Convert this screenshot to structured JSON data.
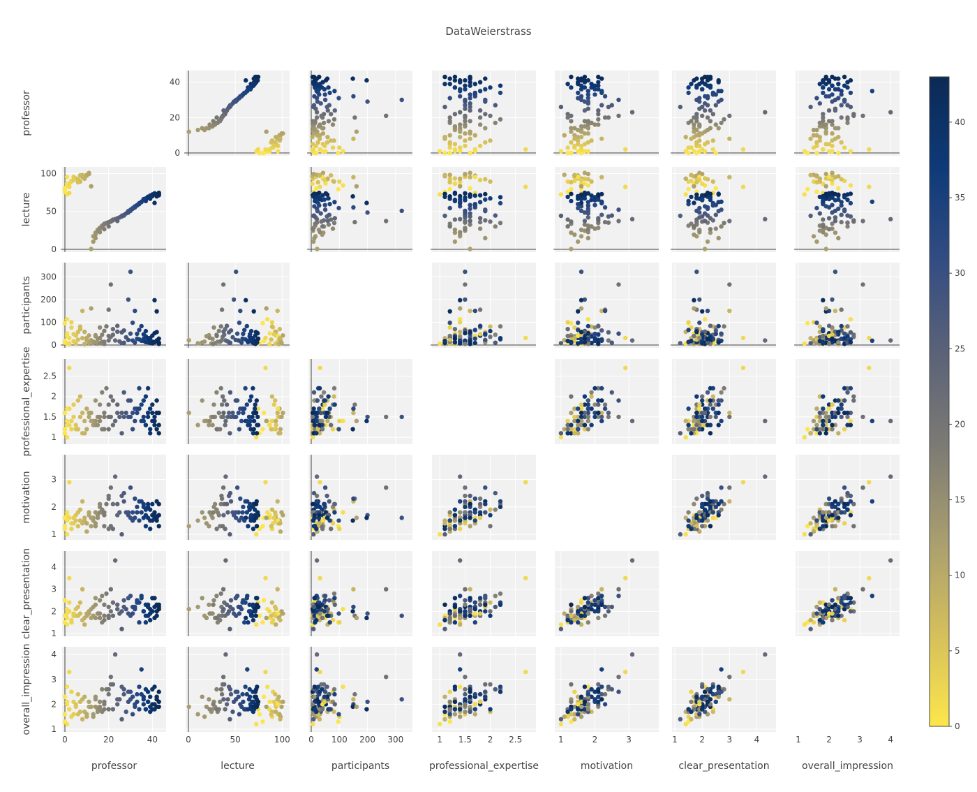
{
  "chart_data": {
    "type": "scatter",
    "subtype": "scatter-matrix",
    "title": "DataWeierstrass",
    "grid": true,
    "diagonal_visible": false,
    "variables": [
      {
        "name": "professor",
        "range": [
          0,
          45
        ],
        "ticks": [
          0,
          20,
          40
        ]
      },
      {
        "name": "lecture",
        "range": [
          0,
          105
        ],
        "ticks": [
          0,
          50,
          100
        ]
      },
      {
        "name": "participants",
        "range": [
          0,
          350
        ],
        "ticks": [
          0,
          100,
          200,
          300
        ]
      },
      {
        "name": "professional_expertise",
        "range": [
          0.9,
          2.85
        ],
        "ticks": [
          1,
          1.5,
          2,
          2.5
        ]
      },
      {
        "name": "motivation",
        "range": [
          0.9,
          3.8
        ],
        "ticks": [
          1,
          2,
          3
        ]
      },
      {
        "name": "clear_presentation",
        "range": [
          1,
          4.6
        ],
        "ticks": [
          1,
          2,
          3,
          4
        ]
      },
      {
        "name": "overall_impression",
        "range": [
          1,
          4.2
        ],
        "ticks": [
          1,
          2,
          3,
          4
        ]
      }
    ],
    "colorbar": {
      "variable": "professor",
      "range": [
        0,
        43
      ],
      "ticks": [
        0,
        5,
        10,
        15,
        20,
        25,
        30,
        35,
        40
      ],
      "colorscale": [
        "#fde64b",
        "#d4bf5c",
        "#a99e6f",
        "#7d7b74",
        "#5c6378",
        "#344d82",
        "#0f3a79",
        "#0b2a55"
      ]
    },
    "records": [
      [
        0,
        79.3,
        96,
        1.2,
        1.3,
        1.5,
        1.3
      ],
      [
        0,
        80.5,
        18,
        1.6,
        1.6,
        2.5,
        2.3
      ],
      [
        0,
        75.9,
        10,
        1.1,
        1.2,
        1.8,
        1.6
      ],
      [
        1,
        72.4,
        6,
        1.0,
        1.0,
        1.4,
        1.2
      ],
      [
        1,
        84.3,
        113,
        1.4,
        1.8,
        2.1,
        2.7
      ],
      [
        1,
        86.9,
        51,
        1.3,
        1.7,
        1.7,
        2.1
      ],
      [
        2,
        74.3,
        8,
        1.7,
        1.6,
        2.4,
        1.8
      ],
      [
        2,
        82.3,
        31,
        2.7,
        2.9,
        3.5,
        3.3
      ],
      [
        2,
        86.5,
        4,
        1.3,
        1.6,
        2.0,
        1.8
      ],
      [
        3,
        89.3,
        100,
        1.4,
        1.2,
        1.5,
        1.5
      ],
      [
        3,
        90.3,
        77,
        1.2,
        1.4,
        1.6,
        2.5
      ],
      [
        4,
        95.6,
        17,
        1.5,
        1.4,
        1.8,
        1.6
      ],
      [
        5,
        93.5,
        42,
        1.3,
        1.5,
        2.1,
        1.9
      ],
      [
        5,
        93.1,
        6,
        1.2,
        1.7,
        1.8,
        2.0
      ],
      [
        6,
        92.5,
        57,
        1.9,
        1.8,
        2.2,
        2.4
      ],
      [
        7,
        89.3,
        81,
        2.0,
        1.9,
        2.4,
        1.7
      ],
      [
        7,
        97.5,
        70,
        1.5,
        1.5,
        1.9,
        2.1
      ],
      [
        8,
        95.1,
        150,
        1.6,
        2.2,
        3.0,
        2.2
      ],
      [
        9,
        96.4,
        4,
        1.1,
        1.5,
        1.7,
        2.3
      ],
      [
        9,
        93.2,
        58,
        1.4,
        1.6,
        1.4,
        1.7
      ],
      [
        10,
        97.2,
        31,
        1.7,
        1.4,
        1.8,
        1.6
      ],
      [
        10,
        98.2,
        21,
        1.2,
        1.1,
        1.9,
        1.5
      ],
      [
        11,
        99.4,
        9,
        1.5,
        1.8,
        2.0,
        1.9
      ],
      [
        11,
        100.8,
        42,
        1.6,
        1.7,
        1.9,
        2.1
      ],
      [
        12,
        0.5,
        21,
        1.6,
        1.3,
        2.1,
        1.9
      ],
      [
        13,
        10.1,
        8,
        1.3,
        1.5,
        2.2,
        1.6
      ],
      [
        13,
        17.2,
        15,
        1.4,
        1.6,
        1.8,
        1.5
      ],
      [
        14,
        19.3,
        39,
        1.4,
        1.4,
        1.7,
        1.9
      ],
      [
        14,
        21.9,
        43,
        1.3,
        1.3,
        2.3,
        2.2
      ],
      [
        15,
        24.5,
        6,
        1.5,
        1.7,
        1.9,
        1.7
      ],
      [
        15,
        25.8,
        27,
        1.3,
        1.6,
        1.9,
        1.8
      ],
      [
        16,
        27.2,
        77,
        1.8,
        2.0,
        2.5,
        2.1
      ],
      [
        16,
        28.4,
        9,
        1.5,
        2.1,
        1.7,
        1.9
      ],
      [
        17,
        30.1,
        45,
        2.1,
        1.9,
        2.7,
        2.6
      ],
      [
        17,
        31.2,
        14,
        1.2,
        1.8,
        1.5,
        1.7
      ],
      [
        18,
        32.6,
        62,
        1.6,
        1.7,
        1.8,
        1.8
      ],
      [
        18,
        33.7,
        14,
        1.2,
        1.3,
        1.6,
        2.1
      ],
      [
        19,
        34.8,
        82,
        2.2,
        2.1,
        2.8,
        2.6
      ],
      [
        20,
        35.3,
        20,
        1.5,
        2.4,
        2.2,
        2.6
      ],
      [
        20,
        35.8,
        155,
        1.8,
        2.3,
        1.8,
        2.4
      ],
      [
        21,
        36.6,
        36,
        2.0,
        1.3,
        2.0,
        2.8
      ],
      [
        21,
        37.3,
        266,
        1.5,
        2.7,
        3.0,
        3.1
      ],
      [
        22,
        38.2,
        45,
        1.9,
        2.1,
        2.4,
        2.8
      ],
      [
        22,
        39.2,
        70,
        1.3,
        1.2,
        1.8,
        1.8
      ],
      [
        23,
        39.8,
        20,
        1.4,
        3.1,
        4.3,
        4.0
      ],
      [
        24,
        41.0,
        84,
        1.8,
        2.1,
        2.3,
        2.0
      ],
      [
        25,
        42.1,
        16,
        1.5,
        1.8,
        1.9,
        2.2
      ],
      [
        26,
        43.3,
        56,
        1.6,
        2.4,
        2.0,
        2.7
      ],
      [
        26,
        44.2,
        8,
        1.1,
        1.0,
        1.2,
        1.4
      ],
      [
        27,
        45.4,
        64,
        1.5,
        2.2,
        2.5,
        2.4
      ],
      [
        28,
        47.3,
        34,
        1.6,
        1.8,
        2.1,
        1.7
      ],
      [
        29,
        48.5,
        200,
        1.5,
        1.7,
        1.9,
        2.1
      ],
      [
        30,
        50.8,
        322,
        1.5,
        1.6,
        1.8,
        2.2
      ],
      [
        30,
        52.2,
        50,
        1.9,
        2.7,
        2.7,
        2.5
      ],
      [
        31,
        53.5,
        20,
        1.6,
        1.8,
        2.2,
        2.3
      ],
      [
        32,
        55.3,
        150,
        1.7,
        2.3,
        2.2,
        2.0
      ],
      [
        32,
        56.7,
        11,
        1.4,
        1.6,
        2.1,
        1.9
      ],
      [
        33,
        58.4,
        49,
        1.6,
        2.0,
        2.5,
        2.1
      ],
      [
        34,
        60.8,
        25,
        2.2,
        2.2,
        2.4,
        2.7
      ],
      [
        35,
        62.4,
        83,
        1.8,
        1.8,
        2.6,
        2.4
      ],
      [
        36,
        64.8,
        18,
        1.5,
        2.0,
        2.0,
        2.2
      ],
      [
        36,
        66.2,
        27,
        1.4,
        1.6,
        2.0,
        2.0
      ],
      [
        37,
        65.3,
        38,
        1.3,
        1.9,
        2.3,
        2.6
      ],
      [
        37,
        67.1,
        61,
        2.0,
        1.7,
        1.8,
        1.8
      ],
      [
        38,
        68.2,
        12,
        1.5,
        1.6,
        1.8,
        2.1
      ],
      [
        38,
        69.4,
        22,
        1.6,
        2.1,
        2.2,
        2.1
      ],
      [
        39,
        66.7,
        31,
        1.2,
        1.5,
        1.9,
        1.9
      ],
      [
        39,
        70.8,
        9,
        1.7,
        1.9,
        2.1,
        2.3
      ],
      [
        40,
        71.3,
        41,
        1.8,
        1.7,
        2.0,
        2.0
      ],
      [
        40,
        72.3,
        15,
        1.6,
        2.1,
        2.6,
        2.6
      ],
      [
        41,
        61.2,
        197,
        1.4,
        1.6,
        1.7,
        1.8
      ],
      [
        41,
        73.9,
        52,
        1.5,
        1.8,
        2.2,
        2.0
      ],
      [
        42,
        72.8,
        20,
        1.9,
        2.2,
        2.3,
        2.2
      ],
      [
        42,
        69.8,
        148,
        1.2,
        1.5,
        2.0,
        1.9
      ],
      [
        43,
        73.0,
        10,
        1.1,
        1.3,
        2.3,
        1.9
      ],
      [
        43,
        71.4,
        5,
        1.6,
        2.1,
        2.1,
        2.5
      ],
      [
        1,
        95.5,
        40,
        1.7,
        1.5,
        1.9,
        2.0
      ],
      [
        4,
        91.4,
        48,
        1.8,
        1.6,
        1.9,
        2.1
      ],
      [
        6,
        88.4,
        24,
        1.2,
        1.3,
        1.8,
        1.6
      ],
      [
        8,
        97.9,
        30,
        1.1,
        1.4,
        1.6,
        1.4
      ],
      [
        12,
        83.2,
        161,
        1.4,
        1.6,
        1.7,
        1.9
      ],
      [
        14,
        14.7,
        11,
        1.9,
        1.8,
        2.6,
        2.3
      ],
      [
        16,
        22.7,
        31,
        1.4,
        1.8,
        1.9,
        1.8
      ],
      [
        18,
        26.5,
        5,
        1.5,
        1.8,
        2.3,
        2.0
      ],
      [
        20,
        30.2,
        40,
        1.2,
        1.2,
        1.7,
        1.8
      ],
      [
        24,
        37.5,
        59,
        1.6,
        1.7,
        2.1,
        2.2
      ],
      [
        27,
        44.6,
        10,
        2.1,
        2.5,
        2.2,
        2.6
      ],
      [
        29,
        50.5,
        22,
        1.9,
        1.8,
        2.6,
        2.5
      ],
      [
        31,
        54.3,
        98,
        1.2,
        1.5,
        1.9,
        1.6
      ],
      [
        33,
        57.8,
        28,
        1.7,
        1.8,
        2.4,
        2.4
      ],
      [
        35,
        62.8,
        19,
        1.4,
        2.2,
        2.7,
        3.4
      ],
      [
        34,
        59.7,
        66,
        1.7,
        1.5,
        1.5,
        1.8
      ],
      [
        38,
        68.8,
        30,
        2.2,
        2.0,
        2.3,
        2.5
      ],
      [
        40,
        70.1,
        7,
        1.4,
        1.5,
        2.0,
        1.8
      ],
      [
        42,
        72.1,
        57,
        1.6,
        1.6,
        1.8,
        2.3
      ],
      [
        43,
        74.5,
        28,
        1.3,
        1.7,
        2.2,
        2.1
      ],
      [
        37,
        63.6,
        13,
        1.3,
        1.3,
        1.5,
        1.8
      ],
      [
        39,
        69.2,
        18,
        1.1,
        1.2,
        1.6,
        1.7
      ],
      [
        36,
        65.7,
        47,
        1.9,
        2.1,
        2.0,
        2.3
      ],
      [
        41,
        73.2,
        12,
        1.3,
        1.7,
        2.6,
        2.7
      ]
    ]
  }
}
